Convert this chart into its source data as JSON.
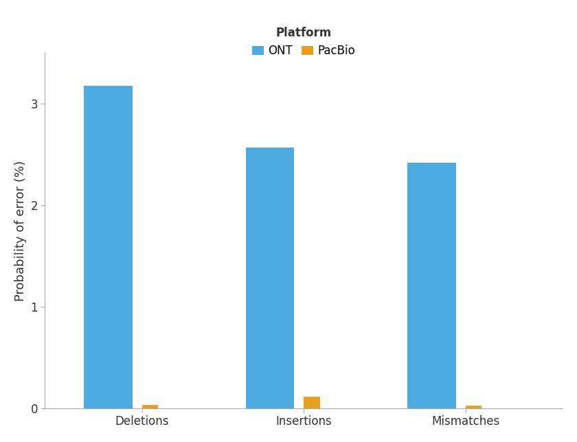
{
  "categories": [
    "Deletions",
    "Insertions",
    "Mismatches"
  ],
  "ont_values": [
    3.18,
    2.57,
    2.42
  ],
  "pacbio_values": [
    0.03,
    0.11,
    0.025
  ],
  "ont_color": "#4DAADF",
  "pacbio_color": "#E8A020",
  "ylabel": "Probability of error (%)",
  "legend_title": "Platform",
  "legend_labels": [
    "ONT",
    "PacBio"
  ],
  "ylim": [
    0,
    3.5
  ],
  "yticks": [
    0,
    1,
    2,
    3
  ],
  "ont_bar_width": 0.3,
  "pacbio_bar_width": 0.1,
  "background_color": "#ffffff",
  "axis_fontsize": 13,
  "tick_fontsize": 12,
  "legend_fontsize": 12
}
